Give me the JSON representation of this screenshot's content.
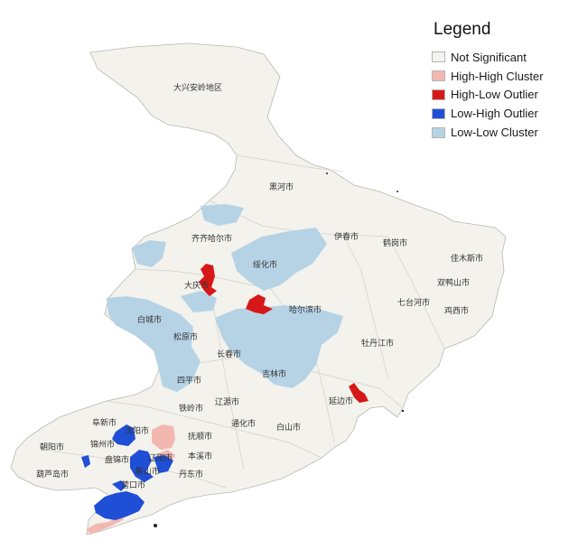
{
  "legend": {
    "title": "Legend",
    "items": [
      {
        "label": "Not Significant",
        "color": "#f3f2ec"
      },
      {
        "label": "High-High Cluster",
        "color": "#f2b8b0"
      },
      {
        "label": "High-Low Outlier",
        "color": "#d71818"
      },
      {
        "label": "Low-High Outlier",
        "color": "#1f4fd6"
      },
      {
        "label": "Low-Low Cluster",
        "color": "#b6d3e6"
      }
    ]
  },
  "cities": [
    {
      "key": "daxinganling",
      "label": "大兴安岭地区"
    },
    {
      "key": "heihe",
      "label": "黑河市"
    },
    {
      "key": "qiqihar",
      "label": "齐齐哈尔市"
    },
    {
      "key": "yichun",
      "label": "伊春市"
    },
    {
      "key": "hegang",
      "label": "鹤岗市"
    },
    {
      "key": "jiamusi",
      "label": "佳木斯市"
    },
    {
      "key": "shuangyashan",
      "label": "双鸭山市"
    },
    {
      "key": "suihua",
      "label": "绥化市"
    },
    {
      "key": "daqing",
      "label": "大庆市"
    },
    {
      "key": "qitaihe",
      "label": "七台河市"
    },
    {
      "key": "harbin",
      "label": "哈尔滨市"
    },
    {
      "key": "jixi",
      "label": "鸡西市"
    },
    {
      "key": "baicheng",
      "label": "白城市"
    },
    {
      "key": "songyuan",
      "label": "松原市"
    },
    {
      "key": "mudanjiang",
      "label": "牡丹江市"
    },
    {
      "key": "changchun",
      "label": "长春市"
    },
    {
      "key": "jilin",
      "label": "吉林市"
    },
    {
      "key": "siping",
      "label": "四平市"
    },
    {
      "key": "yanbian",
      "label": "延边市"
    },
    {
      "key": "tieling",
      "label": "铁岭市"
    },
    {
      "key": "liaoyuan",
      "label": "辽源市"
    },
    {
      "key": "fuxin",
      "label": "阜新市"
    },
    {
      "key": "tonghua",
      "label": "通化市"
    },
    {
      "key": "baishan",
      "label": "白山市"
    },
    {
      "key": "shenyang",
      "label": "沈阳市"
    },
    {
      "key": "chaoyang",
      "label": "朝阳市"
    },
    {
      "key": "jinzhou",
      "label": "锦州市"
    },
    {
      "key": "fushun",
      "label": "抚顺市"
    },
    {
      "key": "liaoyang",
      "label": "辽阳市"
    },
    {
      "key": "panjin",
      "label": "盘锦市"
    },
    {
      "key": "benxi",
      "label": "本溪市"
    },
    {
      "key": "anshan",
      "label": "鞍山市"
    },
    {
      "key": "huludao",
      "label": "葫芦岛市"
    },
    {
      "key": "dandong",
      "label": "丹东市"
    },
    {
      "key": "yingkou",
      "label": "营口市"
    }
  ]
}
